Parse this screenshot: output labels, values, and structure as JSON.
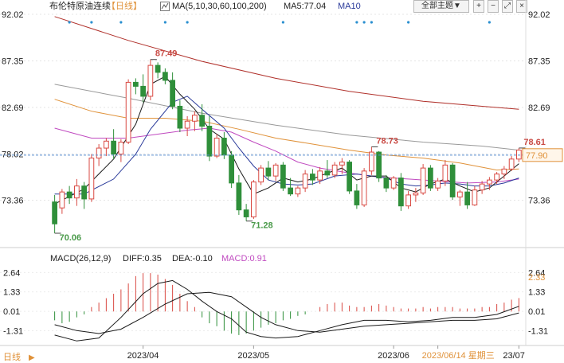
{
  "header": {
    "symbol_name": "布伦特原油连续",
    "period": "【日线】",
    "ma_label": "MA(5,10,30,60,100,200)",
    "ma5_label": "MA5:77.04",
    "ma10_label": "MA10",
    "theme_button": "全部主题▼",
    "icons": [
      "plus-square-icon",
      "minus-square-icon",
      "expand-icon",
      "close-icon"
    ]
  },
  "colors": {
    "up": "#d94a43",
    "down": "#2f8f3a",
    "ma5": "#1a1a1a",
    "ma10": "#2a3a9a",
    "ma30": "#c04ac0",
    "ma60": "#e0923a",
    "ma100": "#999999",
    "ma200": "#b0302a",
    "dif": "#1a1a1a",
    "dea": "#1a1a1a",
    "last_price_box": "#e0923a"
  },
  "chart_data": [
    {
      "type": "candlestick",
      "y_ticks": [
        "92.02",
        "87.35",
        "82.69",
        "78.02",
        "73.36"
      ],
      "ylim": [
        69.5,
        92.02
      ],
      "annotations": [
        {
          "label": "87.49",
          "value": 87.49,
          "index": 13
        },
        {
          "label": "70.06",
          "value": 70.06,
          "index": 0
        },
        {
          "label": "71.28",
          "value": 71.28,
          "index": 26
        },
        {
          "label": "78.73",
          "value": 78.73,
          "index": 43
        },
        {
          "label": "78.61",
          "value": 78.61,
          "index": 63
        }
      ],
      "last_price_label": "77.90",
      "x_labels": [
        {
          "label": "2023/04",
          "index": 12
        },
        {
          "label": "2023/05",
          "index": 27
        },
        {
          "label": "2023/06",
          "index": 46
        },
        {
          "label": "2023/06/14 星期三",
          "index": 52
        },
        {
          "label": "23/07",
          "index": 63
        }
      ],
      "candles": [
        [
          73.2,
          73.9,
          70.06,
          71.0
        ],
        [
          72.6,
          74.5,
          72.0,
          74.2
        ],
        [
          74.2,
          74.8,
          73.0,
          73.6
        ],
        [
          73.6,
          75.5,
          72.8,
          74.8
        ],
        [
          74.8,
          75.2,
          72.5,
          73.5
        ],
        [
          73.5,
          78.0,
          73.2,
          77.6
        ],
        [
          77.6,
          79.0,
          76.8,
          78.6
        ],
        [
          78.6,
          79.6,
          77.8,
          79.3
        ],
        [
          79.3,
          80.5,
          77.5,
          78.0
        ],
        [
          78.0,
          79.5,
          77.2,
          79.2
        ],
        [
          79.2,
          85.5,
          79.0,
          85.2
        ],
        [
          85.2,
          85.6,
          84.0,
          84.8
        ],
        [
          84.8,
          86.0,
          83.2,
          83.8
        ],
        [
          83.8,
          87.49,
          83.4,
          86.9
        ],
        [
          86.9,
          87.2,
          85.6,
          86.2
        ],
        [
          86.2,
          86.6,
          85.0,
          85.4
        ],
        [
          85.4,
          86.2,
          82.5,
          82.8
        ],
        [
          82.8,
          83.4,
          80.2,
          80.6
        ],
        [
          80.6,
          81.8,
          79.8,
          81.3
        ],
        [
          81.3,
          82.3,
          80.3,
          81.9
        ],
        [
          81.9,
          83.0,
          80.3,
          80.8
        ],
        [
          80.8,
          81.8,
          77.3,
          77.8
        ],
        [
          77.8,
          80.0,
          77.6,
          79.6
        ],
        [
          79.6,
          80.2,
          77.5,
          77.9
        ],
        [
          77.9,
          78.3,
          74.6,
          75.1
        ],
        [
          75.1,
          75.9,
          71.9,
          72.4
        ],
        [
          72.4,
          73.0,
          71.28,
          71.7
        ],
        [
          71.7,
          75.4,
          71.5,
          75.2
        ],
        [
          75.2,
          76.9,
          74.9,
          76.6
        ],
        [
          76.6,
          77.3,
          75.4,
          75.8
        ],
        [
          75.8,
          77.1,
          75.3,
          76.9
        ],
        [
          76.9,
          77.2,
          74.3,
          74.6
        ],
        [
          74.6,
          75.6,
          73.8,
          74.0
        ],
        [
          74.0,
          74.8,
          73.7,
          74.6
        ],
        [
          74.6,
          76.4,
          74.2,
          76.0
        ],
        [
          76.0,
          76.5,
          74.9,
          75.4
        ],
        [
          75.4,
          76.7,
          75.0,
          76.3
        ],
        [
          76.3,
          77.4,
          75.6,
          75.9
        ],
        [
          75.9,
          77.2,
          75.6,
          76.9
        ],
        [
          76.9,
          77.6,
          76.0,
          77.2
        ],
        [
          77.2,
          77.4,
          74.0,
          74.3
        ],
        [
          74.3,
          75.0,
          72.5,
          72.9
        ],
        [
          72.9,
          76.6,
          72.7,
          76.3
        ],
        [
          76.3,
          78.73,
          75.9,
          78.2
        ],
        [
          78.2,
          78.3,
          75.2,
          75.6
        ],
        [
          75.6,
          75.9,
          74.2,
          74.6
        ],
        [
          74.6,
          75.8,
          74.4,
          75.6
        ],
        [
          75.6,
          76.1,
          72.3,
          72.8
        ],
        [
          72.8,
          74.3,
          72.5,
          73.9
        ],
        [
          73.9,
          74.6,
          73.2,
          74.1
        ],
        [
          74.1,
          77.0,
          73.9,
          76.6
        ],
        [
          76.6,
          76.9,
          74.3,
          74.6
        ],
        [
          74.6,
          75.6,
          74.3,
          75.3
        ],
        [
          75.3,
          77.4,
          74.8,
          76.9
        ],
        [
          76.9,
          77.1,
          73.4,
          73.7
        ],
        [
          73.7,
          74.4,
          72.8,
          74.2
        ],
        [
          74.2,
          75.2,
          72.5,
          72.9
        ],
        [
          72.9,
          74.8,
          72.8,
          74.4
        ],
        [
          74.4,
          75.3,
          74.0,
          75.0
        ],
        [
          75.0,
          75.7,
          74.4,
          75.4
        ],
        [
          75.4,
          76.2,
          75.0,
          76.0
        ],
        [
          76.0,
          76.8,
          75.5,
          76.5
        ],
        [
          76.5,
          77.8,
          76.3,
          77.5
        ],
        [
          77.5,
          78.61,
          77.2,
          78.4
        ]
      ],
      "ma_lines": {
        "ma5": [
          [
            0,
            73.0
          ],
          [
            4,
            74.5
          ],
          [
            8,
            77.5
          ],
          [
            11,
            81.0
          ],
          [
            13,
            85.0
          ],
          [
            15,
            85.8
          ],
          [
            17,
            84.0
          ],
          [
            19,
            82.5
          ],
          [
            21,
            80.5
          ],
          [
            23,
            79.5
          ],
          [
            25,
            76.5
          ],
          [
            27,
            74.0
          ],
          [
            29,
            74.6
          ],
          [
            31,
            75.6
          ],
          [
            33,
            75.2
          ],
          [
            35,
            75.5
          ],
          [
            37,
            76.1
          ],
          [
            39,
            76.6
          ],
          [
            41,
            75.4
          ],
          [
            43,
            75.8
          ],
          [
            45,
            75.8
          ],
          [
            47,
            74.6
          ],
          [
            49,
            74.2
          ],
          [
            51,
            75.0
          ],
          [
            53,
            75.5
          ],
          [
            55,
            74.8
          ],
          [
            57,
            74.2
          ],
          [
            59,
            74.6
          ],
          [
            61,
            75.8
          ],
          [
            63,
            77.04
          ]
        ],
        "ma10": [
          [
            0,
            74.0
          ],
          [
            4,
            74.0
          ],
          [
            8,
            75.5
          ],
          [
            11,
            78.0
          ],
          [
            13,
            80.5
          ],
          [
            16,
            83.2
          ],
          [
            18,
            83.8
          ],
          [
            20,
            82.5
          ],
          [
            23,
            80.6
          ],
          [
            25,
            78.6
          ],
          [
            27,
            76.8
          ],
          [
            29,
            75.4
          ],
          [
            31,
            75.0
          ],
          [
            33,
            74.9
          ],
          [
            35,
            75.0
          ],
          [
            38,
            75.8
          ],
          [
            41,
            76.0
          ],
          [
            43,
            75.8
          ],
          [
            45,
            75.6
          ],
          [
            47,
            75.0
          ],
          [
            49,
            74.8
          ],
          [
            51,
            74.9
          ],
          [
            53,
            75.1
          ],
          [
            55,
            75.0
          ],
          [
            57,
            74.8
          ],
          [
            59,
            74.8
          ],
          [
            61,
            75.1
          ],
          [
            63,
            75.6
          ]
        ],
        "ma30": [
          [
            0,
            80.6
          ],
          [
            5,
            79.6
          ],
          [
            10,
            79.6
          ],
          [
            14,
            80.0
          ],
          [
            18,
            80.4
          ],
          [
            21,
            80.6
          ],
          [
            24,
            80.2
          ],
          [
            27,
            79.2
          ],
          [
            30,
            78.3
          ],
          [
            33,
            77.2
          ],
          [
            36,
            76.6
          ],
          [
            40,
            76.1
          ],
          [
            44,
            75.7
          ],
          [
            48,
            75.5
          ],
          [
            52,
            75.3
          ],
          [
            56,
            75.1
          ],
          [
            60,
            75.2
          ],
          [
            63,
            75.5
          ]
        ],
        "ma60": [
          [
            0,
            83.5
          ],
          [
            5,
            82.3
          ],
          [
            10,
            81.6
          ],
          [
            15,
            81.6
          ],
          [
            20,
            81.3
          ],
          [
            25,
            80.5
          ],
          [
            30,
            79.6
          ],
          [
            35,
            79.0
          ],
          [
            40,
            78.4
          ],
          [
            45,
            77.9
          ],
          [
            50,
            77.6
          ],
          [
            55,
            77.1
          ],
          [
            60,
            76.4
          ],
          [
            63,
            76.5
          ]
        ],
        "ma100": [
          [
            0,
            85.0
          ],
          [
            10,
            83.6
          ],
          [
            20,
            82.1
          ],
          [
            30,
            80.9
          ],
          [
            40,
            79.9
          ],
          [
            50,
            79.2
          ],
          [
            58,
            78.8
          ],
          [
            63,
            78.4
          ]
        ],
        "ma200": [
          [
            0,
            91.8
          ],
          [
            10,
            89.4
          ],
          [
            20,
            87.3
          ],
          [
            30,
            85.6
          ],
          [
            40,
            84.3
          ],
          [
            50,
            83.3
          ],
          [
            58,
            82.8
          ],
          [
            63,
            82.5
          ]
        ]
      }
    },
    {
      "type": "macd",
      "title": "MACD(26,12,9)",
      "diff_label": "DIFF:0.35",
      "dea_label": "DEA:-0.10",
      "macd_label": "MACD:0.91",
      "y_ticks_right": [
        "2.64",
        "1.33",
        "0.01",
        "-1.31"
      ],
      "y_ticks_left": [
        "2.64",
        "1.33",
        "0.01",
        "-1.31"
      ],
      "current_value_label": "2.33",
      "ylim": [
        -2.2,
        3.2
      ],
      "dif": [
        [
          0,
          -1.6
        ],
        [
          3,
          -2.0
        ],
        [
          6,
          -1.8
        ],
        [
          9,
          -0.4
        ],
        [
          12,
          1.2
        ],
        [
          14,
          1.9
        ],
        [
          16,
          2.1
        ],
        [
          18,
          1.5
        ],
        [
          20,
          0.7
        ],
        [
          22,
          0.0
        ],
        [
          24,
          -0.5
        ],
        [
          26,
          -1.4
        ],
        [
          28,
          -1.7
        ],
        [
          30,
          -1.8
        ],
        [
          33,
          -1.7
        ],
        [
          36,
          -1.3
        ],
        [
          39,
          -0.9
        ],
        [
          42,
          -0.6
        ],
        [
          45,
          -0.6
        ],
        [
          48,
          -0.7
        ],
        [
          51,
          -0.6
        ],
        [
          54,
          -0.4
        ],
        [
          57,
          -0.4
        ],
        [
          60,
          -0.2
        ],
        [
          63,
          0.35
        ]
      ],
      "dea": [
        [
          0,
          -0.9
        ],
        [
          3,
          -1.3
        ],
        [
          6,
          -1.5
        ],
        [
          9,
          -1.2
        ],
        [
          12,
          -0.4
        ],
        [
          15,
          0.5
        ],
        [
          18,
          1.2
        ],
        [
          21,
          1.3
        ],
        [
          24,
          1.0
        ],
        [
          26,
          0.3
        ],
        [
          28,
          -0.4
        ],
        [
          30,
          -0.9
        ],
        [
          33,
          -1.3
        ],
        [
          36,
          -1.4
        ],
        [
          39,
          -1.2
        ],
        [
          42,
          -1.0
        ],
        [
          45,
          -0.9
        ],
        [
          48,
          -0.8
        ],
        [
          51,
          -0.7
        ],
        [
          54,
          -0.6
        ],
        [
          57,
          -0.6
        ],
        [
          60,
          -0.5
        ],
        [
          63,
          -0.1
        ]
      ],
      "hist": [
        -0.6,
        -0.8,
        -0.7,
        -0.4,
        -0.2,
        0.3,
        0.6,
        0.9,
        1.2,
        1.5,
        1.9,
        2.4,
        2.6,
        2.6,
        2.5,
        2.2,
        1.8,
        1.2,
        0.7,
        0.3,
        -0.4,
        -0.8,
        -1.0,
        -1.3,
        -1.5,
        -1.6,
        -1.5,
        -1.3,
        -1.1,
        -0.9,
        -0.8,
        -0.6,
        -0.5,
        -0.3,
        -0.2,
        0.0,
        0.3,
        0.5,
        0.6,
        0.6,
        0.4,
        0.3,
        0.3,
        0.4,
        0.5,
        0.4,
        0.3,
        0.2,
        0.2,
        0.2,
        0.3,
        0.2,
        0.3,
        0.3,
        0.3,
        0.2,
        0.2,
        0.2,
        0.3,
        0.3,
        0.5,
        0.6,
        0.8,
        0.91
      ]
    }
  ],
  "footer": {
    "period_button": "日线",
    "period_arrow": "▶"
  }
}
